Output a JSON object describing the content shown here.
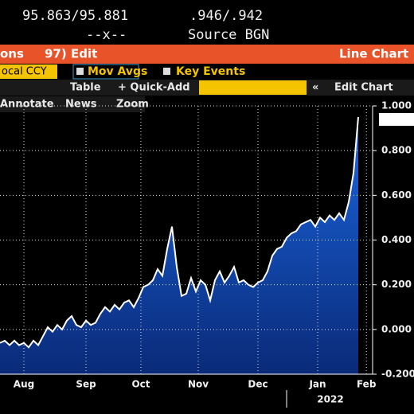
{
  "header": {
    "bid_ask_left": "95.863/95.881",
    "bid_ask_right": ".946/.942",
    "crossing": "--x--",
    "source": "Source BGN"
  },
  "menu": {
    "options": "ons",
    "edit": "97) Edit",
    "chart_kind": "Line Chart"
  },
  "toolbar": {
    "currency": "ocal CCY",
    "mov_avgs": "Mov Avgs",
    "key_events": "Key Events",
    "table": "Table",
    "quick_add": "+ Quick-Add",
    "edit_chart": "Edit Chart",
    "annotate": "Annotate",
    "news": "News",
    "zoom": "Zoom"
  },
  "chart_data": {
    "type": "area",
    "line_color": "#ffffff",
    "fill_color": "#1450c0",
    "grid": true,
    "values": [
      -0.06,
      -0.05,
      -0.07,
      -0.05,
      -0.07,
      -0.06,
      -0.08,
      -0.05,
      -0.07,
      -0.03,
      0.01,
      -0.01,
      0.02,
      0.0,
      0.04,
      0.06,
      0.02,
      0.01,
      0.04,
      0.02,
      0.03,
      0.07,
      0.1,
      0.08,
      0.11,
      0.09,
      0.12,
      0.13,
      0.1,
      0.14,
      0.19,
      0.2,
      0.22,
      0.27,
      0.24,
      0.36,
      0.46,
      0.28,
      0.15,
      0.16,
      0.23,
      0.17,
      0.22,
      0.2,
      0.13,
      0.22,
      0.26,
      0.21,
      0.24,
      0.28,
      0.21,
      0.22,
      0.2,
      0.19,
      0.21,
      0.22,
      0.26,
      0.33,
      0.36,
      0.37,
      0.41,
      0.43,
      0.44,
      0.47,
      0.48,
      0.49,
      0.46,
      0.5,
      0.48,
      0.51,
      0.49,
      0.52,
      0.49,
      0.57,
      0.7,
      0.95
    ],
    "xlim": [
      0,
      78
    ],
    "xticks": [
      {
        "value": 5,
        "label": "Aug"
      },
      {
        "value": 18,
        "label": "Sep"
      },
      {
        "value": 29.5,
        "label": "Oct"
      },
      {
        "value": 41.5,
        "label": "Nov"
      },
      {
        "value": 54,
        "label": "Dec"
      },
      {
        "value": 66.5,
        "label": "Jan"
      },
      {
        "value": 76.7,
        "label": "Feb"
      }
    ],
    "x_year_label": "2022",
    "ylim": [
      -0.2,
      1.0
    ],
    "yticks": [
      {
        "value": -0.2,
        "label": "-0.200"
      },
      {
        "value": 0,
        "label": "0.000"
      },
      {
        "value": 0.2,
        "label": "0.200"
      },
      {
        "value": 0.4,
        "label": "0.400"
      },
      {
        "value": 0.6,
        "label": "0.600"
      },
      {
        "value": 0.8,
        "label": "0.800"
      },
      {
        "value": 1.0,
        "label": "1.000"
      }
    ]
  }
}
